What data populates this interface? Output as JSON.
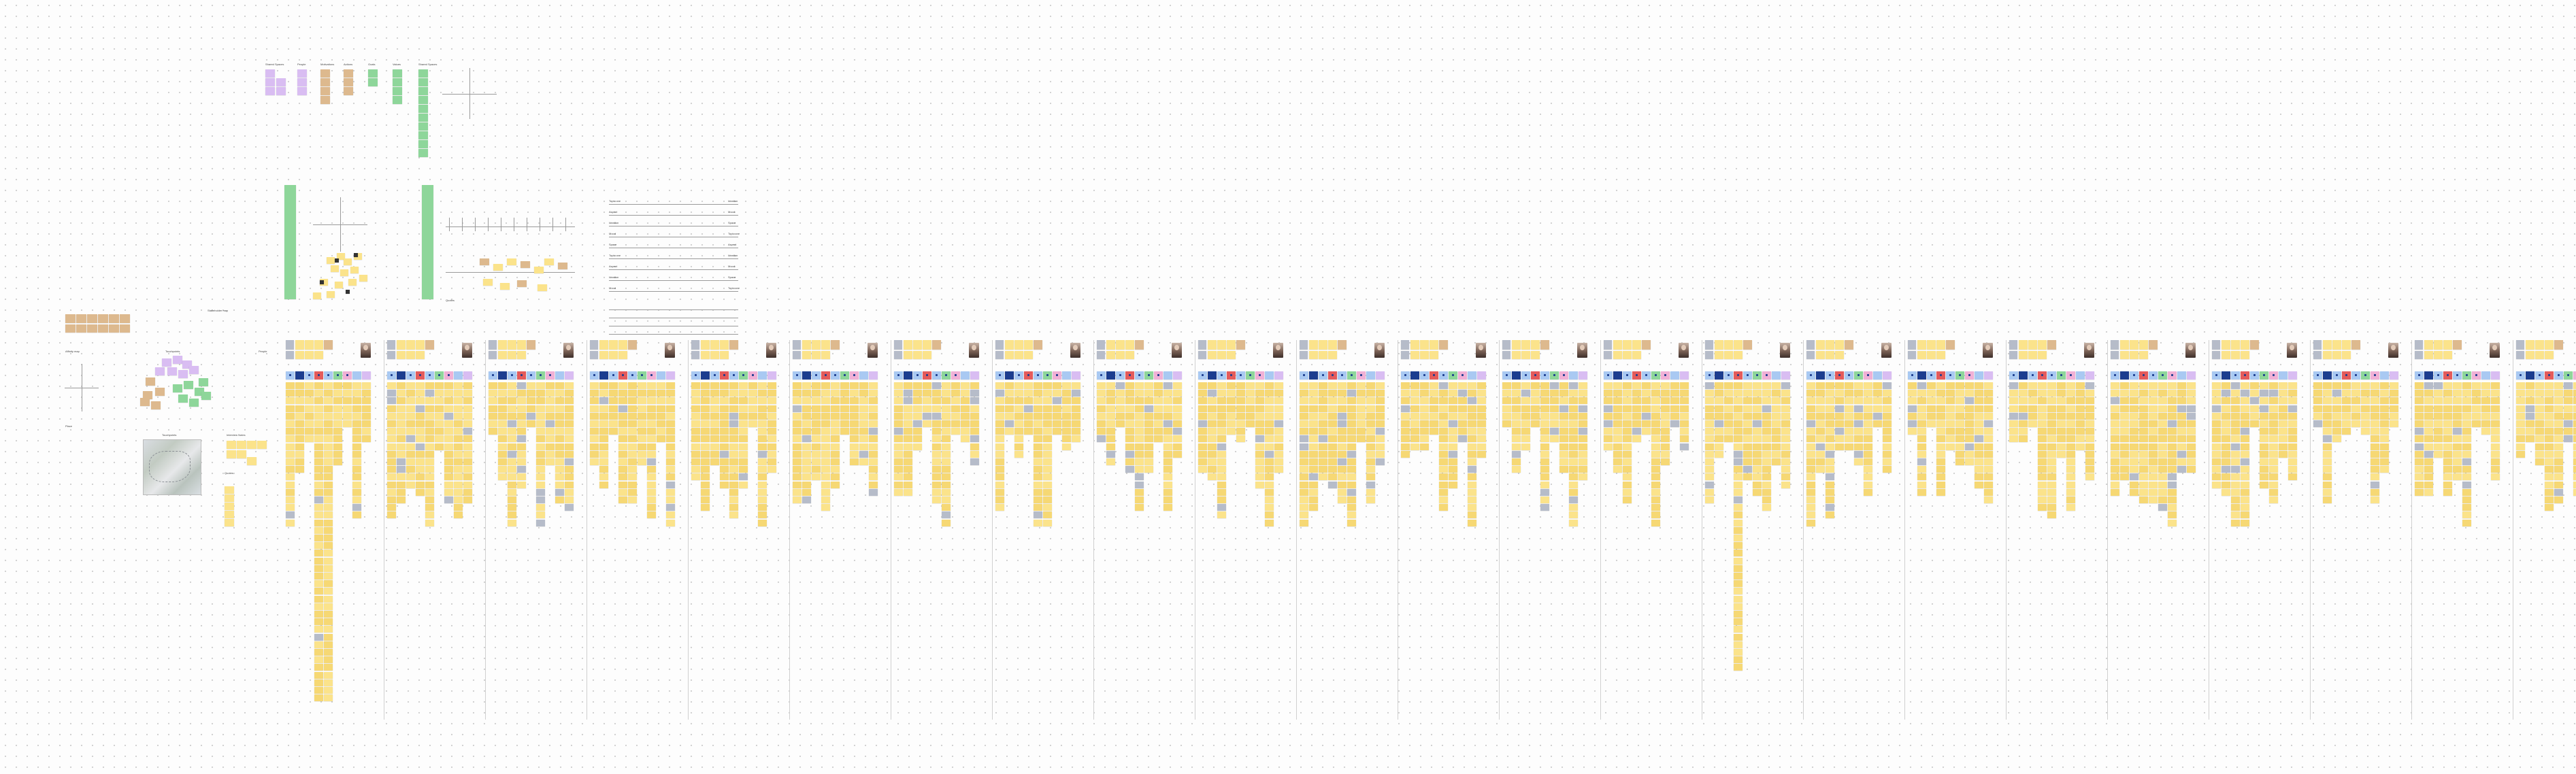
{
  "board": {
    "colors": {
      "yellow": "#fbe38b",
      "yellow_alt": "#f6d874",
      "tan": "#ddb98e",
      "purple": "#d9bdf2",
      "green": "#8ed69a",
      "blue": "#a9c9f2",
      "gray": "#b6bcc9",
      "pink": "#f1b0d6",
      "red": "#e45b5b",
      "navy": "#1c3d8f"
    },
    "labels": {
      "top_headers": [
        "Shared Spaces",
        "People",
        "Motivations",
        "Actions",
        "Goals",
        "Values"
      ],
      "legend": [
        "Topic one",
        "Aspect",
        "Ideation",
        "Mood",
        "Space"
      ],
      "left_group": [
        "Stakeholder map",
        "Affinity map",
        "Place",
        "Touchpoints"
      ],
      "section_titles": [
        "Interview Notes",
        "Quotes"
      ]
    }
  }
}
